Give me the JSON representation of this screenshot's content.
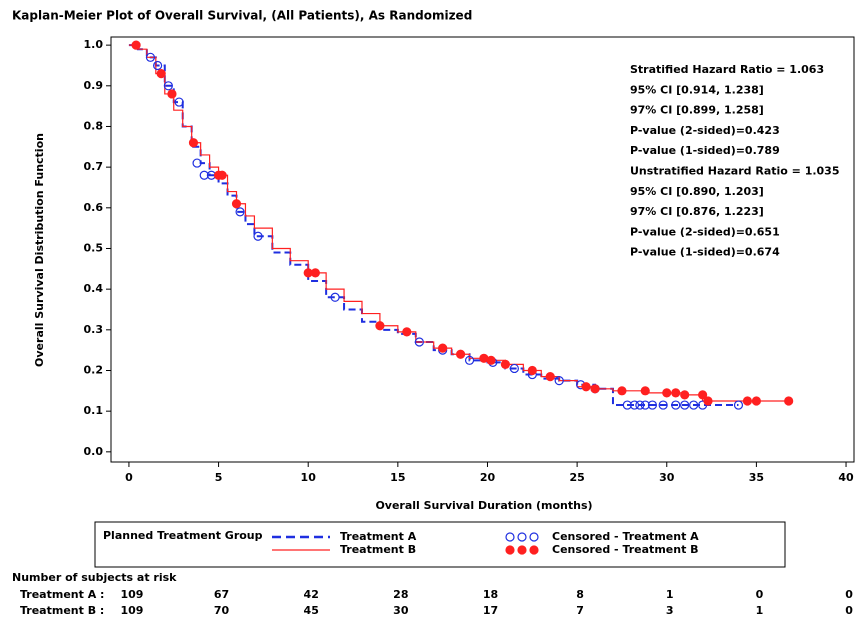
{
  "chart_data": {
    "type": "kaplan-meier",
    "title": "Kaplan-Meier Plot of Overall Survival, (All Patients), As Randomized",
    "x_label": "Overall Survival Duration (months)",
    "y_label": "Overall Survival Distribution Function",
    "xlim": [
      -1,
      40.5
    ],
    "ylim": [
      -0.025,
      1.02
    ],
    "xticks": [
      0,
      5,
      10,
      15,
      20,
      25,
      30,
      35,
      40
    ],
    "yticks": [
      {
        "value": 0,
        "label": "0.0"
      },
      0.1,
      0.2,
      0.3,
      0.4,
      0.5,
      0.6,
      0.7,
      0.8,
      0.9,
      {
        "value": 1,
        "label": "1.0"
      }
    ],
    "series": [
      {
        "name": "Treatment A",
        "color": "#1f2fe0",
        "dash": true,
        "x": [
          0,
          0.5,
          1,
          1.5,
          2,
          2.5,
          3,
          3.5,
          4,
          4.5,
          5,
          5.5,
          6,
          6.5,
          7,
          8,
          9,
          10,
          11,
          12,
          13,
          14,
          15,
          16,
          17,
          18,
          19,
          20,
          21,
          22,
          23,
          24,
          25,
          26,
          27,
          34
        ],
        "values": [
          1.0,
          0.99,
          0.97,
          0.95,
          0.9,
          0.86,
          0.8,
          0.75,
          0.71,
          0.68,
          0.66,
          0.63,
          0.59,
          0.56,
          0.53,
          0.49,
          0.46,
          0.42,
          0.38,
          0.35,
          0.32,
          0.3,
          0.29,
          0.27,
          0.25,
          0.24,
          0.225,
          0.22,
          0.205,
          0.19,
          0.18,
          0.175,
          0.165,
          0.155,
          0.115,
          0.115
        ]
      },
      {
        "name": "Treatment B",
        "color": "#ff2020",
        "dash": false,
        "x": [
          0,
          0.5,
          1,
          1.5,
          2,
          2.5,
          3,
          3.5,
          4,
          4.5,
          5,
          5.5,
          6,
          6.5,
          7,
          8,
          9,
          10,
          11,
          12,
          13,
          14,
          15,
          16,
          17,
          18,
          19,
          20,
          21,
          22,
          23,
          24,
          25,
          26,
          27,
          29,
          31,
          32,
          37
        ],
        "values": [
          1.0,
          0.99,
          0.97,
          0.93,
          0.88,
          0.84,
          0.8,
          0.76,
          0.73,
          0.7,
          0.68,
          0.64,
          0.61,
          0.58,
          0.55,
          0.5,
          0.47,
          0.44,
          0.4,
          0.37,
          0.34,
          0.31,
          0.295,
          0.27,
          0.255,
          0.24,
          0.23,
          0.225,
          0.215,
          0.2,
          0.185,
          0.175,
          0.16,
          0.155,
          0.15,
          0.145,
          0.14,
          0.125,
          0.125
        ]
      }
    ],
    "censored": [
      {
        "name": "Censored - Treatment A",
        "color": "#1f2fe0",
        "filled": false,
        "x": [
          1.2,
          1.6,
          2.2,
          2.8,
          3.8,
          4.2,
          4.6,
          6.2,
          7.2,
          11.5,
          16.2,
          17.5,
          19,
          20.3,
          21.5,
          22.5,
          24,
          25.2,
          26,
          27.8,
          28.2,
          28.5,
          28.8,
          29.2,
          29.8,
          30.5,
          31,
          31.5,
          32,
          34
        ],
        "values": [
          0.97,
          0.95,
          0.9,
          0.86,
          0.71,
          0.68,
          0.68,
          0.59,
          0.53,
          0.38,
          0.27,
          0.25,
          0.225,
          0.22,
          0.205,
          0.19,
          0.175,
          0.165,
          0.155,
          0.115,
          0.115,
          0.115,
          0.115,
          0.115,
          0.115,
          0.115,
          0.115,
          0.115,
          0.115,
          0.115
        ]
      },
      {
        "name": "Censored - Treatment B",
        "color": "#ff2020",
        "filled": true,
        "x": [
          0.4,
          1.8,
          2.4,
          3.6,
          5,
          5.2,
          6,
          10,
          10.4,
          14,
          15.5,
          17.5,
          18.5,
          19.8,
          20.2,
          21,
          22.5,
          23.5,
          25.5,
          26,
          27.5,
          28.8,
          30,
          30.5,
          31,
          32,
          32.3,
          34.5,
          35,
          36.8
        ],
        "values": [
          1.0,
          0.93,
          0.88,
          0.76,
          0.68,
          0.68,
          0.61,
          0.44,
          0.44,
          0.31,
          0.295,
          0.255,
          0.24,
          0.23,
          0.225,
          0.215,
          0.2,
          0.185,
          0.16,
          0.155,
          0.15,
          0.15,
          0.145,
          0.145,
          0.14,
          0.14,
          0.125,
          0.125,
          0.125,
          0.125
        ]
      }
    ],
    "legend_title": "Planned Treatment Group",
    "annotations": [
      "Stratified Hazard Ratio = 1.063",
      "95% CI [0.914, 1.238]",
      "97% CI [0.899, 1.258]",
      "P-value (2-sided)=0.423",
      "P-value (1-sided)=0.789",
      "Unstratified Hazard Ratio = 1.035",
      "95% CI [0.890, 1.203]",
      "97% CI [0.876, 1.223]",
      "P-value (2-sided)=0.651",
      "P-value (1-sided)=0.674"
    ],
    "at_risk": {
      "title": "Number of subjects at risk",
      "rows": [
        {
          "label": "Treatment  A :",
          "values": [
            109,
            67,
            42,
            28,
            18,
            8,
            1,
            0,
            0
          ]
        },
        {
          "label": "Treatment  B :",
          "values": [
            109,
            70,
            45,
            30,
            17,
            7,
            3,
            1,
            0
          ]
        }
      ]
    }
  }
}
